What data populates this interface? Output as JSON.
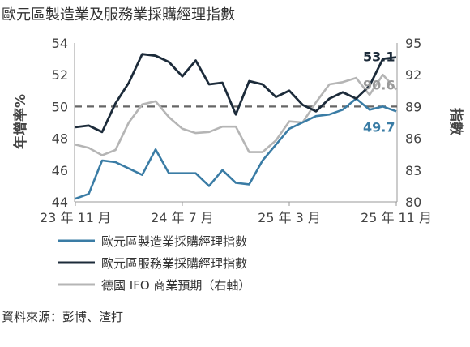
{
  "chart_data": {
    "type": "line",
    "title": "歐元區製造業及服務業採購經理指數",
    "ylabel_left": "年增率%",
    "ylabel_right": "指數",
    "ylim_left": [
      44,
      54
    ],
    "yticks_left": [
      "44",
      "46",
      "48",
      "50",
      "52",
      "54"
    ],
    "ylim_right": [
      80,
      95
    ],
    "yticks_right": [
      "80",
      "83",
      "86",
      "89",
      "92",
      "95"
    ],
    "xtick_labels": [
      "23 年 11 月",
      "24 年 7 月",
      "25 年 3 月",
      "25 年 11 月"
    ],
    "xtick_index": [
      0,
      8,
      16,
      24
    ],
    "reference_line": {
      "axis": "left",
      "value": 50,
      "style": "dashed"
    },
    "series": [
      {
        "name": "歐元區製造業採購經理指數",
        "axis": "left",
        "color": "#3a7ca5",
        "end_label": "49.7",
        "values": [
          44.2,
          44.5,
          46.6,
          46.5,
          46.1,
          45.7,
          47.3,
          45.8,
          45.8,
          45.8,
          45.0,
          46.0,
          45.2,
          45.1,
          46.6,
          47.6,
          48.6,
          49.0,
          49.4,
          49.5,
          49.8,
          50.5,
          49.8,
          50.0,
          49.7
        ]
      },
      {
        "name": "歐元區服務業採購經理指數",
        "axis": "left",
        "color": "#1c2b3a",
        "end_label": "53.1",
        "values": [
          48.7,
          48.8,
          48.4,
          50.2,
          51.5,
          53.3,
          53.2,
          52.8,
          51.9,
          52.9,
          51.4,
          51.5,
          49.5,
          51.6,
          51.4,
          50.6,
          51.0,
          50.1,
          49.7,
          50.5,
          50.9,
          50.5,
          51.3,
          53.0,
          53.1
        ]
      },
      {
        "name": "德國 IFO 商業預期（右軸）",
        "axis": "right",
        "color": "#b5b5b5",
        "end_label": "90.6",
        "values": [
          85.4,
          85.1,
          84.4,
          84.9,
          87.5,
          89.2,
          89.5,
          88.0,
          86.9,
          86.5,
          86.6,
          87.1,
          87.1,
          84.7,
          84.7,
          85.8,
          87.6,
          87.5,
          89.4,
          91.1,
          91.3,
          91.7,
          90.1,
          92.0,
          90.6
        ]
      }
    ],
    "legend_position": "bottom",
    "source": "資料來源：彭博、渣打"
  }
}
